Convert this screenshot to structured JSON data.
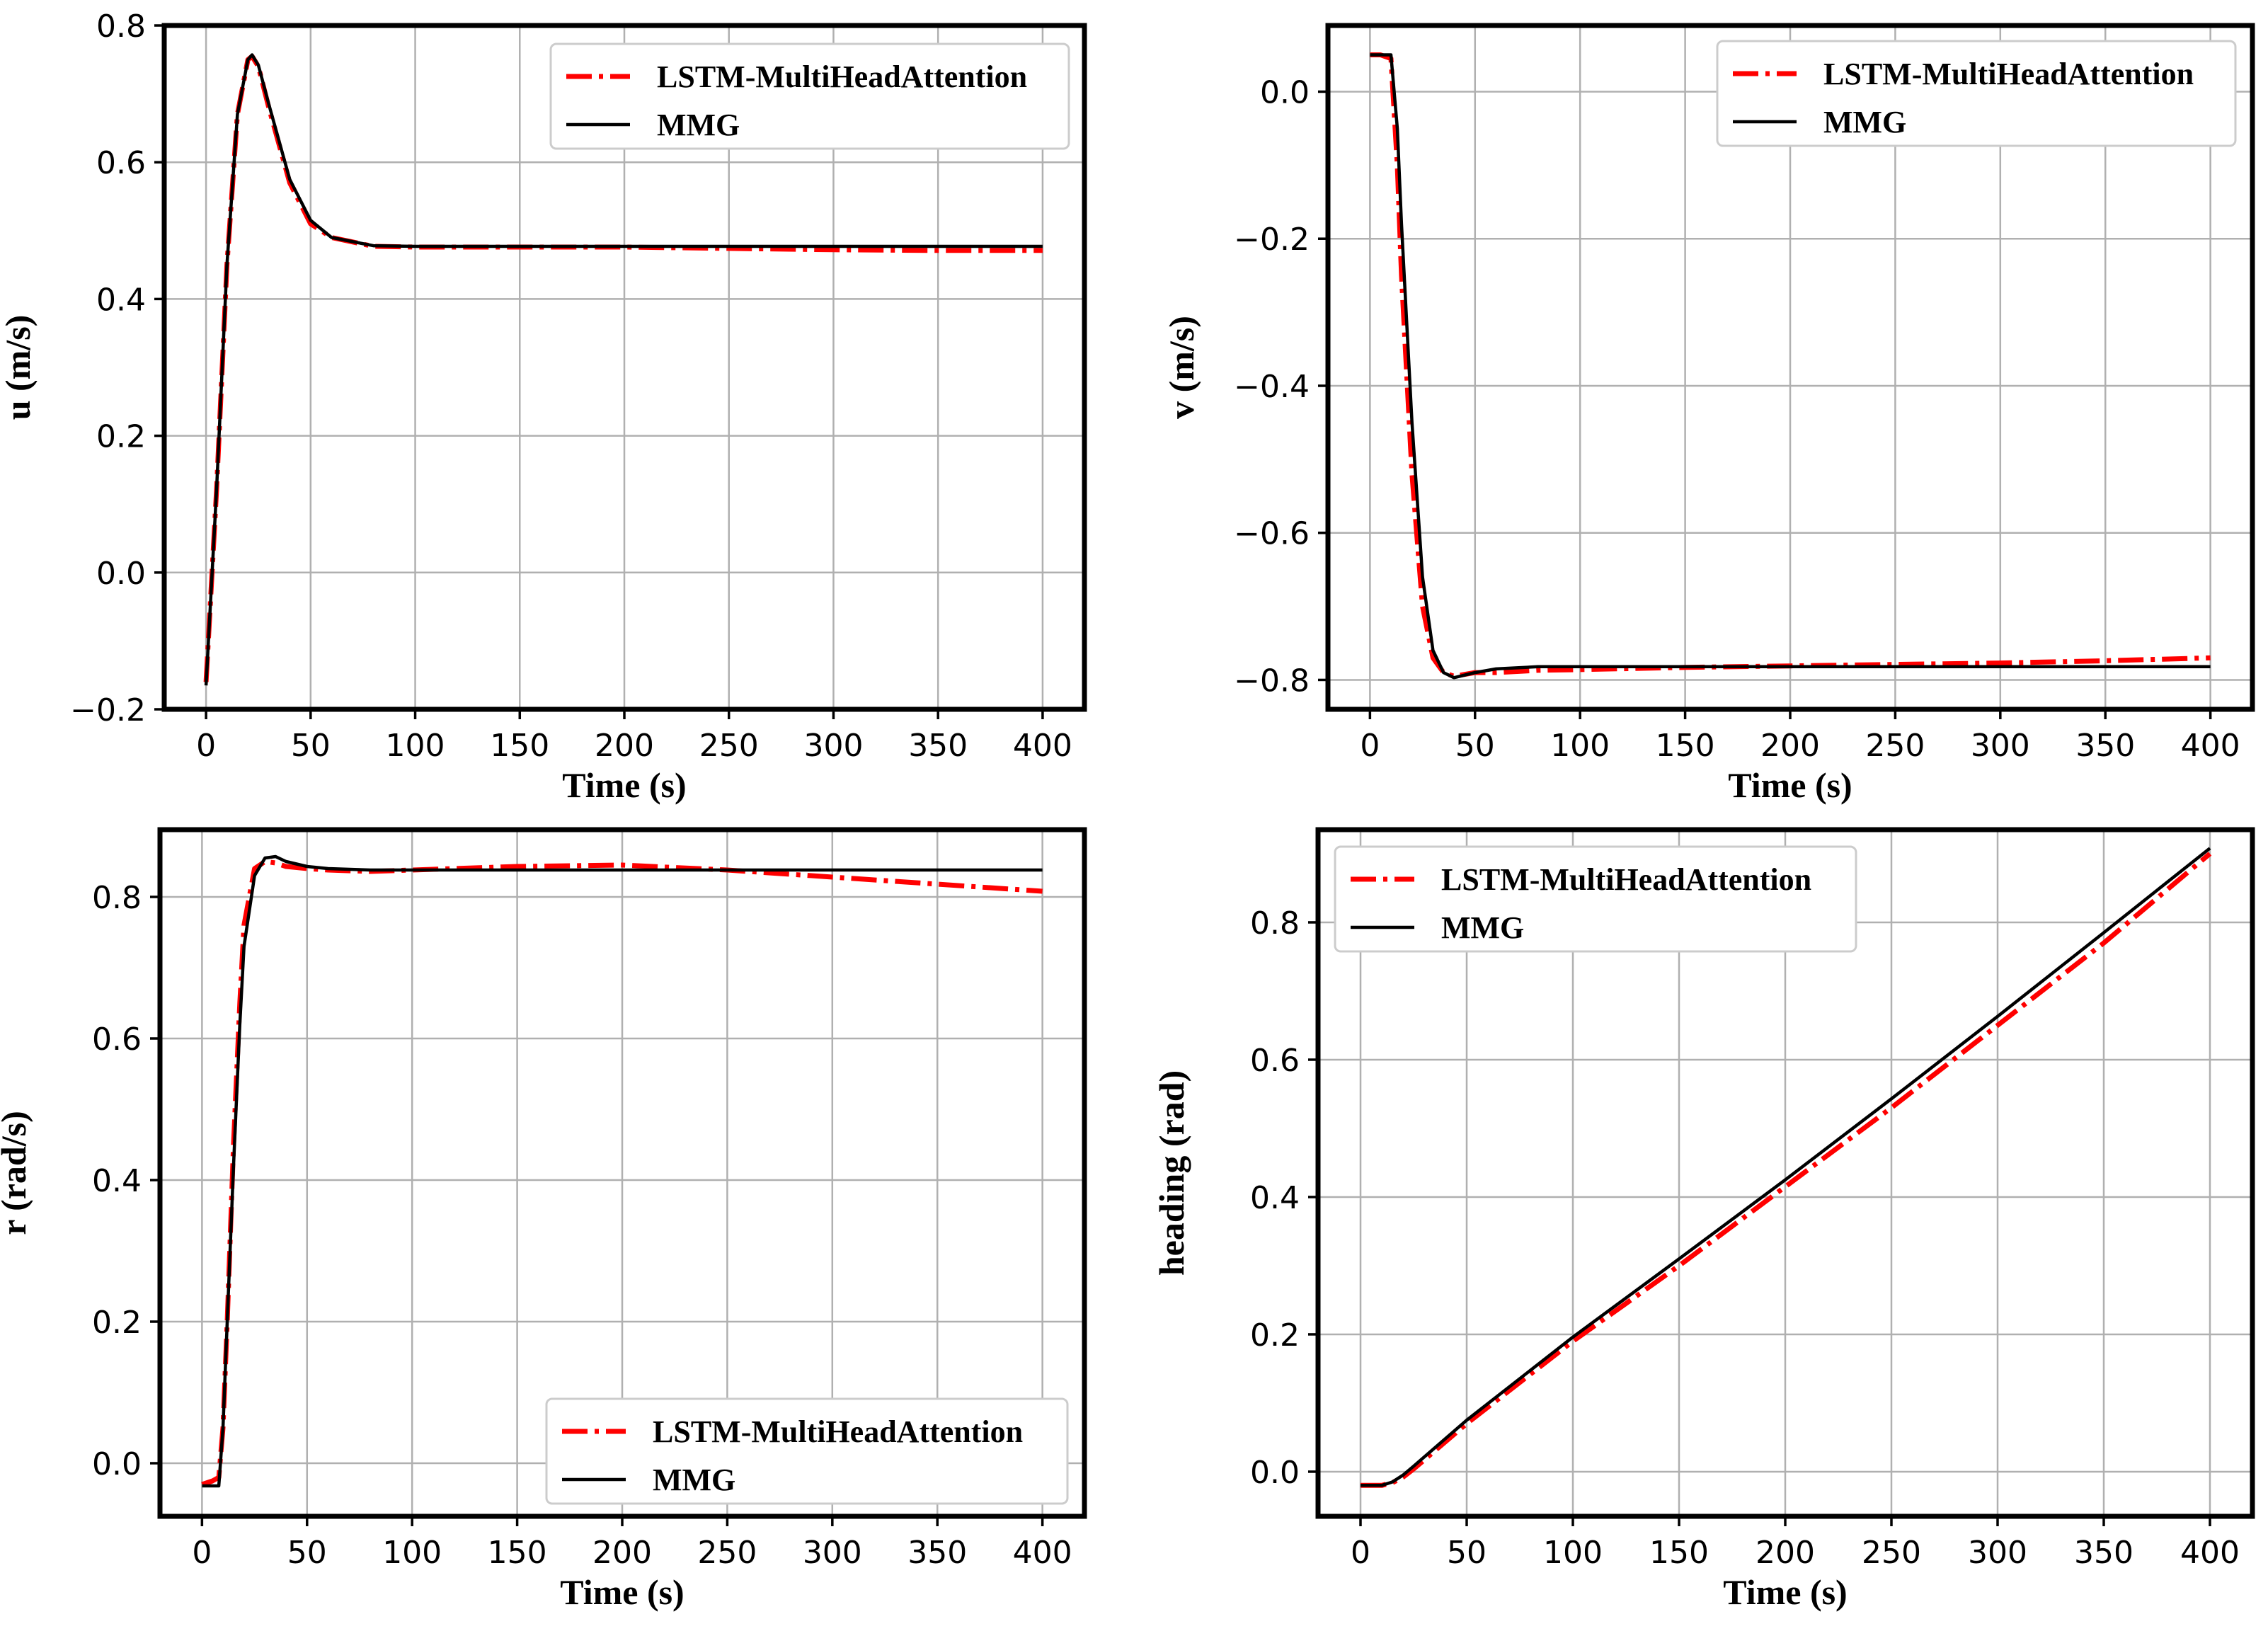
{
  "chart_data": [
    {
      "type": "line",
      "id": "u",
      "title": "",
      "xlabel": "Time (s)",
      "ylabel": "u (m/s)",
      "xlim": [
        -20,
        420
      ],
      "ylim": [
        -0.2,
        0.8
      ],
      "xticks": [
        0,
        50,
        100,
        150,
        200,
        250,
        300,
        350,
        400
      ],
      "xtick_labels": [
        "0",
        "50",
        "100",
        "150",
        "200",
        "250",
        "300",
        "350",
        "400"
      ],
      "yticks": [
        -0.2,
        0.0,
        0.2,
        0.4,
        0.6,
        0.8
      ],
      "ytick_labels": [
        "−0.2",
        "0.0",
        "0.2",
        "0.4",
        "0.6",
        "0.8"
      ],
      "grid": true,
      "legend_position": "top-right",
      "series": [
        {
          "name": "LSTM-MultiHeadAttention",
          "color": "#ff0000",
          "style": "dashdot",
          "x": [
            0,
            5,
            10,
            15,
            20,
            22,
            25,
            30,
            40,
            50,
            60,
            80,
            100,
            150,
            200,
            250,
            300,
            350,
            400
          ],
          "y": [
            -0.16,
            0.12,
            0.45,
            0.67,
            0.75,
            0.755,
            0.74,
            0.68,
            0.57,
            0.51,
            0.49,
            0.477,
            0.476,
            0.476,
            0.476,
            0.474,
            0.472,
            0.471,
            0.471
          ]
        },
        {
          "name": "MMG",
          "color": "#000000",
          "style": "solid",
          "x": [
            0,
            5,
            10,
            15,
            20,
            22,
            25,
            30,
            40,
            50,
            60,
            80,
            100,
            150,
            200,
            250,
            300,
            350,
            400
          ],
          "y": [
            -0.165,
            0.12,
            0.45,
            0.67,
            0.75,
            0.757,
            0.742,
            0.685,
            0.575,
            0.515,
            0.49,
            0.478,
            0.477,
            0.477,
            0.477,
            0.477,
            0.477,
            0.477,
            0.477
          ]
        }
      ]
    },
    {
      "type": "line",
      "id": "v",
      "title": "",
      "xlabel": "Time (s)",
      "ylabel": "v (m/s)",
      "xlim": [
        -20,
        420
      ],
      "ylim": [
        -0.84,
        0.09
      ],
      "xticks": [
        0,
        50,
        100,
        150,
        200,
        250,
        300,
        350,
        400
      ],
      "xtick_labels": [
        "0",
        "50",
        "100",
        "150",
        "200",
        "250",
        "300",
        "350",
        "400"
      ],
      "yticks": [
        -0.8,
        -0.6,
        -0.4,
        -0.2,
        0.0
      ],
      "ytick_labels": [
        "−0.8",
        "−0.6",
        "−0.4",
        "−0.2",
        "0.0"
      ],
      "grid": true,
      "legend_position": "top-right",
      "series": [
        {
          "name": "LSTM-MultiHeadAttention",
          "color": "#ff0000",
          "style": "dashdot",
          "x": [
            0,
            5,
            10,
            13,
            15,
            20,
            25,
            30,
            35,
            40,
            50,
            60,
            80,
            100,
            150,
            200,
            250,
            300,
            350,
            400
          ],
          "y": [
            0.05,
            0.05,
            0.045,
            -0.1,
            -0.25,
            -0.52,
            -0.7,
            -0.77,
            -0.79,
            -0.795,
            -0.79,
            -0.79,
            -0.787,
            -0.786,
            -0.783,
            -0.781,
            -0.779,
            -0.777,
            -0.774,
            -0.77
          ]
        },
        {
          "name": "MMG",
          "color": "#000000",
          "style": "solid",
          "x": [
            0,
            5,
            10,
            13,
            15,
            20,
            25,
            30,
            35,
            40,
            50,
            60,
            80,
            100,
            150,
            200,
            250,
            300,
            350,
            400
          ],
          "y": [
            0.05,
            0.05,
            0.05,
            -0.05,
            -0.18,
            -0.45,
            -0.66,
            -0.76,
            -0.79,
            -0.797,
            -0.79,
            -0.785,
            -0.782,
            -0.782,
            -0.782,
            -0.782,
            -0.782,
            -0.782,
            -0.782,
            -0.782
          ]
        }
      ]
    },
    {
      "type": "line",
      "id": "r",
      "title": "",
      "xlabel": "Time (s)",
      "ylabel": "r (rad/s)",
      "xlim": [
        -20,
        420
      ],
      "ylim": [
        -0.075,
        0.895
      ],
      "xticks": [
        0,
        50,
        100,
        150,
        200,
        250,
        300,
        350,
        400
      ],
      "xtick_labels": [
        "0",
        "50",
        "100",
        "150",
        "200",
        "250",
        "300",
        "350",
        "400"
      ],
      "yticks": [
        0.0,
        0.2,
        0.4,
        0.6,
        0.8
      ],
      "ytick_labels": [
        "0.0",
        "0.2",
        "0.4",
        "0.6",
        "0.8"
      ],
      "grid": true,
      "legend_position": "bottom-right",
      "series": [
        {
          "name": "LSTM-MultiHeadAttention",
          "color": "#ff0000",
          "style": "dashdot",
          "x": [
            0,
            5,
            8,
            10,
            12,
            15,
            18,
            20,
            25,
            30,
            35,
            40,
            50,
            60,
            80,
            100,
            150,
            200,
            250,
            300,
            350,
            400
          ],
          "y": [
            -0.03,
            -0.025,
            -0.02,
            0.05,
            0.2,
            0.45,
            0.65,
            0.76,
            0.84,
            0.85,
            0.848,
            0.843,
            0.84,
            0.838,
            0.836,
            0.838,
            0.843,
            0.845,
            0.838,
            0.828,
            0.818,
            0.808
          ]
        },
        {
          "name": "MMG",
          "color": "#000000",
          "style": "solid",
          "x": [
            0,
            5,
            8,
            10,
            12,
            15,
            18,
            20,
            25,
            30,
            35,
            40,
            50,
            60,
            80,
            100,
            150,
            200,
            250,
            300,
            350,
            400
          ],
          "y": [
            -0.032,
            -0.032,
            -0.032,
            0.05,
            0.2,
            0.42,
            0.62,
            0.73,
            0.83,
            0.855,
            0.857,
            0.85,
            0.843,
            0.84,
            0.838,
            0.838,
            0.838,
            0.838,
            0.838,
            0.838,
            0.838,
            0.838
          ]
        }
      ]
    },
    {
      "type": "line",
      "id": "heading",
      "title": "",
      "xlabel": "Time (s)",
      "ylabel": "heading (rad)",
      "xlim": [
        -20,
        420
      ],
      "ylim": [
        -0.065,
        0.935
      ],
      "xticks": [
        0,
        50,
        100,
        150,
        200,
        250,
        300,
        350,
        400
      ],
      "xtick_labels": [
        "0",
        "50",
        "100",
        "150",
        "200",
        "250",
        "300",
        "350",
        "400"
      ],
      "yticks": [
        0.0,
        0.2,
        0.4,
        0.6,
        0.8
      ],
      "ytick_labels": [
        "0.0",
        "0.2",
        "0.4",
        "0.6",
        "0.8"
      ],
      "grid": true,
      "legend_position": "top-left",
      "series": [
        {
          "name": "LSTM-MultiHeadAttention",
          "color": "#ff0000",
          "style": "dashdot",
          "x": [
            0,
            10,
            15,
            20,
            25,
            50,
            100,
            150,
            200,
            250,
            300,
            350,
            400
          ],
          "y": [
            -0.02,
            -0.02,
            -0.016,
            -0.008,
            0.004,
            0.07,
            0.19,
            0.3,
            0.415,
            0.53,
            0.65,
            0.77,
            0.9
          ]
        },
        {
          "name": "MMG",
          "color": "#000000",
          "style": "solid",
          "x": [
            0,
            10,
            15,
            20,
            25,
            50,
            100,
            150,
            200,
            250,
            300,
            350,
            400
          ],
          "y": [
            -0.02,
            -0.02,
            -0.015,
            -0.005,
            0.008,
            0.075,
            0.196,
            0.31,
            0.425,
            0.543,
            0.663,
            0.785,
            0.908
          ]
        }
      ]
    }
  ]
}
